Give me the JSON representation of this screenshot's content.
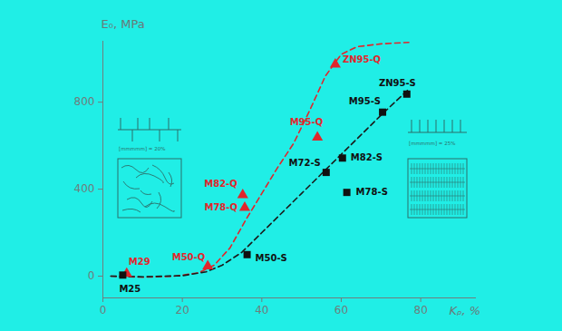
{
  "chart_data": {
    "type": "scatter",
    "x_label": "Kᵨ, %",
    "y_label": "E₀, MPa",
    "xlim": [
      0,
      94
    ],
    "ylim": [
      -100,
      1080
    ],
    "xticks": [
      0,
      20,
      40,
      60,
      80
    ],
    "yticks": [
      0,
      400,
      800
    ],
    "grid": false,
    "series": [
      {
        "type": "line",
        "color": "#e0262c",
        "line_style": "dashed",
        "x": [
          2,
          10,
          18,
          24,
          28,
          32,
          36,
          40,
          44,
          48,
          52,
          56,
          60,
          64,
          70,
          77
        ],
        "values": [
          0,
          -5,
          0,
          15,
          50,
          130,
          260,
          380,
          500,
          610,
          760,
          920,
          1020,
          1055,
          1068,
          1075
        ]
      },
      {
        "type": "line",
        "color": "#1a1a1a",
        "line_style": "dashed",
        "x": [
          2,
          10,
          20,
          26,
          30,
          35,
          40,
          45,
          50,
          55,
          60,
          65,
          70,
          77
        ],
        "values": [
          0,
          -3,
          2,
          20,
          50,
          110,
          200,
          290,
          380,
          470,
          560,
          650,
          740,
          860
        ]
      },
      {
        "type": "scatter",
        "color": "#e0262c",
        "marker": "triangle",
        "labels": [
          "M29",
          "M50-Q",
          "M78-Q",
          "M82-Q",
          "M95-Q",
          "ZN95-Q"
        ],
        "x": [
          6,
          26.4,
          35.7,
          35.2,
          54,
          58.5
        ],
        "values": [
          12,
          46,
          315,
          373,
          638,
          974
        ]
      },
      {
        "type": "scatter",
        "color": "#111111",
        "marker": "square",
        "labels": [
          "M25",
          "M50-S",
          "M72-S",
          "M78-S",
          "M82-S",
          "M95-S",
          "ZN95-S"
        ],
        "x": [
          5,
          36.3,
          56.2,
          61.4,
          60.3,
          70.4,
          76.5
        ],
        "values": [
          5,
          99,
          477,
          385,
          543,
          754,
          837
        ]
      }
    ],
    "annotations": [
      "[mmmmm] = 20%",
      "[mmmmm] = 25%"
    ]
  }
}
